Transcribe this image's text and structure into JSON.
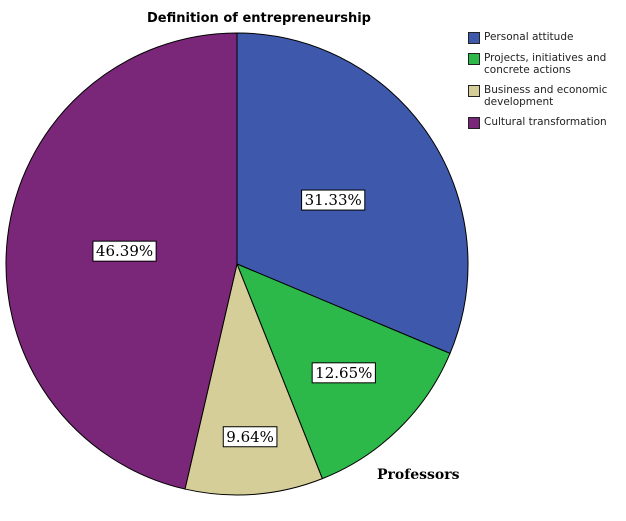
{
  "chart_data": {
    "type": "pie",
    "title": "Definition of entrepreneurship",
    "subtitle": "Professors",
    "legend_position": "top-right",
    "slices": [
      {
        "label": "Personal attitude",
        "value": 31.33,
        "display": "31.33%",
        "color": "#3e58ac"
      },
      {
        "label": "Projects, initiatives and concrete actions",
        "value": 12.65,
        "display": "12.65%",
        "color": "#2db84a"
      },
      {
        "label": "Business and economic development",
        "value": 9.64,
        "display": "9.64%",
        "color": "#d5ce99"
      },
      {
        "label": "Cultural transformation",
        "value": 46.39,
        "display": "46.39%",
        "color": "#7b2779"
      }
    ]
  }
}
